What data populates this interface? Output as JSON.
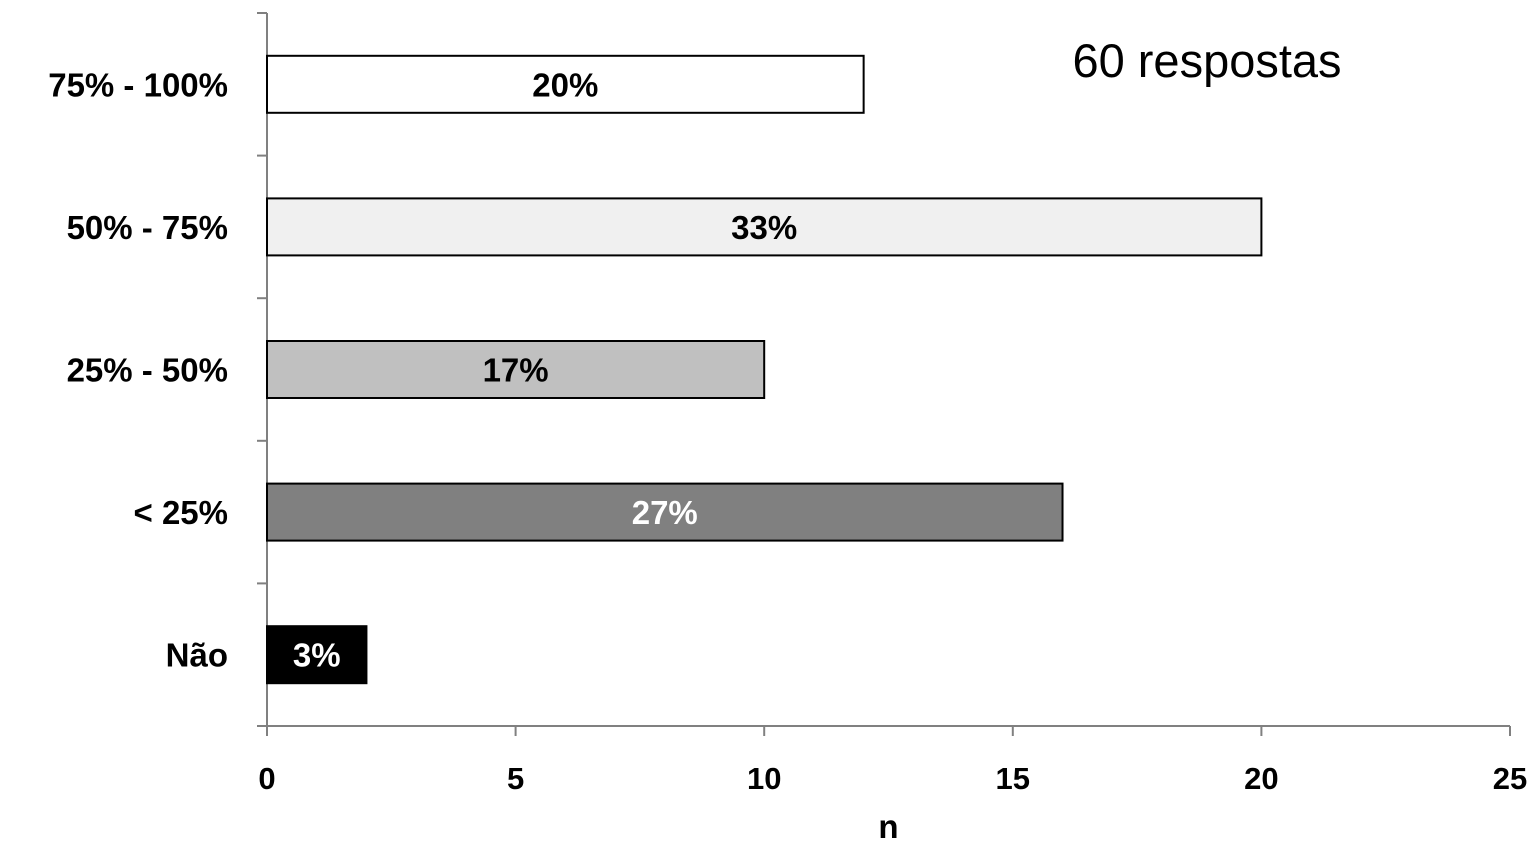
{
  "chart_data": {
    "type": "bar",
    "orientation": "horizontal",
    "categories": [
      "75% - 100%",
      "50% - 75%",
      "25% - 50%",
      "< 25%",
      "Não"
    ],
    "values": [
      12,
      20,
      10,
      16,
      2
    ],
    "data_labels": [
      "20%",
      "33%",
      "17%",
      "27%",
      "3%"
    ],
    "colors": [
      "#ffffff",
      "#f0f0f0",
      "#c0c0c0",
      "#808080",
      "#000000"
    ],
    "label_colors": [
      "#000000",
      "#000000",
      "#000000",
      "#ffffff",
      "#ffffff"
    ],
    "xlabel": "n",
    "ylabel": "",
    "xlim": [
      0,
      25
    ],
    "xticks": [
      0,
      5,
      10,
      15,
      20,
      25
    ],
    "annotation": "60 respostas",
    "grid": false,
    "legend": "none"
  }
}
